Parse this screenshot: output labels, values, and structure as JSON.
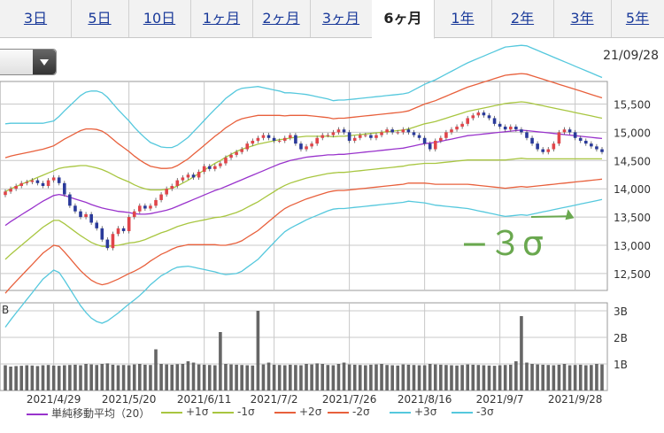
{
  "tabs": [
    {
      "label": "3日",
      "active": false
    },
    {
      "label": "5日",
      "active": false
    },
    {
      "label": "10日",
      "active": false
    },
    {
      "label": "1ヶ月",
      "active": false
    },
    {
      "label": "2ヶ月",
      "active": false
    },
    {
      "label": "3ヶ月",
      "active": false
    },
    {
      "label": "6ヶ月",
      "active": true
    },
    {
      "label": "1年",
      "active": false
    },
    {
      "label": "2年",
      "active": false
    },
    {
      "label": "3年",
      "active": false
    },
    {
      "label": "5年",
      "active": false
    }
  ],
  "date_label": "21/09/28",
  "annotation": "−３σ",
  "legend": [
    {
      "label": "単純移動平均（20）",
      "color": "#9933cc"
    },
    {
      "label": "+1σ",
      "color": "#a8c640"
    },
    {
      "label": "-1σ",
      "color": "#a8c640"
    },
    {
      "label": "+2σ",
      "color": "#e8603c"
    },
    {
      "label": "-2σ",
      "color": "#e8603c"
    },
    {
      "label": "+3σ",
      "color": "#55c8dd"
    },
    {
      "label": "-3σ",
      "color": "#55c8dd"
    }
  ],
  "colors": {
    "up": "#e0454a",
    "down": "#2a3a9a",
    "volume": "#666666",
    "grid": "#c8c8c8",
    "annotation": "#6aa84f"
  },
  "chart_data": {
    "type": "candlestick",
    "price_ylim": [
      12200,
      15900
    ],
    "price_ticks": [
      "12,500",
      "13,000",
      "13,500",
      "14,000",
      "14,500",
      "15,000",
      "15,500"
    ],
    "price_tick_values": [
      12500,
      13000,
      13500,
      14000,
      14500,
      15000,
      15500
    ],
    "volume_ticks": [
      "1B",
      "2B",
      "3B"
    ],
    "volume_tick_values": [
      1,
      2,
      3
    ],
    "volume_ylim": [
      0,
      3.3
    ],
    "x_labels": [
      "2021/4/29",
      "2021/5/20",
      "2021/6/11",
      "2021/7/2",
      "2021/7/26",
      "2021/8/16",
      "2021/9/7",
      "2021/9/28"
    ],
    "x_label_index": [
      9,
      23,
      37,
      50,
      64,
      78,
      92,
      106
    ],
    "ma20": [
      13350,
      13420,
      13480,
      13540,
      13600,
      13660,
      13720,
      13780,
      13830,
      13880,
      13900,
      13880,
      13850,
      13820,
      13790,
      13760,
      13720,
      13690,
      13660,
      13640,
      13620,
      13600,
      13590,
      13580,
      13560,
      13550,
      13550,
      13560,
      13580,
      13600,
      13620,
      13650,
      13690,
      13730,
      13770,
      13810,
      13850,
      13890,
      13930,
      13970,
      14000,
      14040,
      14080,
      14120,
      14160,
      14200,
      14240,
      14280,
      14320,
      14360,
      14400,
      14440,
      14470,
      14500,
      14520,
      14540,
      14560,
      14570,
      14580,
      14590,
      14600,
      14600,
      14610,
      14610,
      14620,
      14630,
      14640,
      14650,
      14660,
      14670,
      14680,
      14690,
      14700,
      14710,
      14720,
      14740,
      14760,
      14780,
      14800,
      14810,
      14820,
      14840,
      14860,
      14880,
      14900,
      14920,
      14940,
      14950,
      14960,
      14970,
      14980,
      14990,
      15000,
      15010,
      15020,
      15030,
      15040,
      15030,
      15020,
      15010,
      15000,
      14990,
      14980,
      14970,
      14960,
      14950,
      14940,
      14930,
      14920,
      14910,
      14900,
      14890
    ],
    "sigma": [
      600,
      580,
      560,
      540,
      520,
      500,
      480,
      460,
      450,
      440,
      460,
      500,
      540,
      580,
      620,
      650,
      670,
      680,
      680,
      660,
      630,
      600,
      570,
      540,
      510,
      480,
      450,
      420,
      400,
      380,
      370,
      360,
      360,
      370,
      380,
      400,
      420,
      440,
      460,
      480,
      500,
      520,
      530,
      540,
      540,
      530,
      520,
      510,
      490,
      470,
      450,
      430,
      410,
      400,
      390,
      380,
      370,
      360,
      350,
      340,
      330,
      320,
      320,
      320,
      320,
      320,
      320,
      320,
      320,
      320,
      320,
      320,
      320,
      320,
      320,
      320,
      330,
      340,
      350,
      360,
      370,
      380,
      390,
      400,
      410,
      420,
      430,
      440,
      450,
      460,
      470,
      480,
      490,
      500,
      500,
      500,
      500,
      500,
      490,
      480,
      470,
      460,
      450,
      440,
      430,
      420,
      410,
      400,
      390,
      380,
      370,
      360
    ],
    "closes": [
      13950,
      14000,
      14050,
      14100,
      14120,
      14150,
      14100,
      14050,
      14150,
      14200,
      14100,
      13900,
      13700,
      13600,
      13500,
      13550,
      13400,
      13300,
      13100,
      12950,
      13200,
      13300,
      13250,
      13500,
      13600,
      13700,
      13650,
      13700,
      13800,
      13900,
      14000,
      14050,
      14150,
      14200,
      14250,
      14200,
      14300,
      14400,
      14350,
      14400,
      14450,
      14550,
      14600,
      14650,
      14700,
      14800,
      14850,
      14900,
      14950,
      14900,
      14850,
      14850,
      14900,
      14950,
      14800,
      14700,
      14750,
      14800,
      14900,
      14950,
      14950,
      15000,
      15050,
      15000,
      14850,
      14900,
      14950,
      14950,
      14900,
      14950,
      15000,
      15050,
      15000,
      15000,
      15050,
      15000,
      14950,
      14900,
      14800,
      14700,
      14850,
      14900,
      15000,
      15050,
      15100,
      15150,
      15250,
      15300,
      15350,
      15300,
      15250,
      15150,
      15100,
      15050,
      15100,
      15050,
      15000,
      14900,
      14800,
      14700,
      14650,
      14700,
      14800,
      15000,
      15050,
      15000,
      14900,
      14850,
      14800,
      14750,
      14700,
      14650
    ],
    "volumes": [
      0.95,
      0.9,
      0.92,
      0.93,
      0.95,
      0.94,
      0.92,
      0.95,
      0.96,
      0.94,
      0.93,
      0.95,
      0.96,
      0.97,
      0.95,
      1.0,
      0.98,
      0.96,
      1.0,
      1.02,
      0.97,
      0.95,
      0.96,
      0.95,
      0.98,
      1.0,
      0.97,
      0.96,
      1.55,
      1.0,
      0.98,
      0.97,
      0.99,
      1.0,
      1.1,
      1.05,
      0.98,
      0.97,
      0.96,
      0.95,
      2.2,
      1.0,
      0.98,
      0.97,
      0.96,
      0.95,
      0.94,
      3.0,
      0.98,
      1.05,
      0.97,
      0.96,
      0.95,
      0.97,
      0.96,
      0.95,
      1.0,
      0.98,
      1.02,
      1.0,
      0.96,
      0.95,
      1.0,
      1.05,
      0.98,
      0.97,
      0.96,
      0.95,
      0.97,
      0.98,
      1.0,
      0.96,
      0.95,
      0.94,
      0.98,
      0.97,
      0.96,
      0.95,
      0.95,
      1.0,
      0.98,
      0.97,
      0.96,
      0.95,
      0.94,
      0.96,
      0.98,
      0.97,
      0.96,
      0.95,
      0.94,
      0.93,
      0.95,
      0.96,
      0.97,
      1.1,
      2.8,
      1.05,
      1.0,
      0.98,
      0.97,
      0.96,
      0.95,
      0.97,
      1.0,
      0.95,
      0.96,
      0.97,
      0.95,
      0.96,
      1.0,
      0.98
    ]
  }
}
